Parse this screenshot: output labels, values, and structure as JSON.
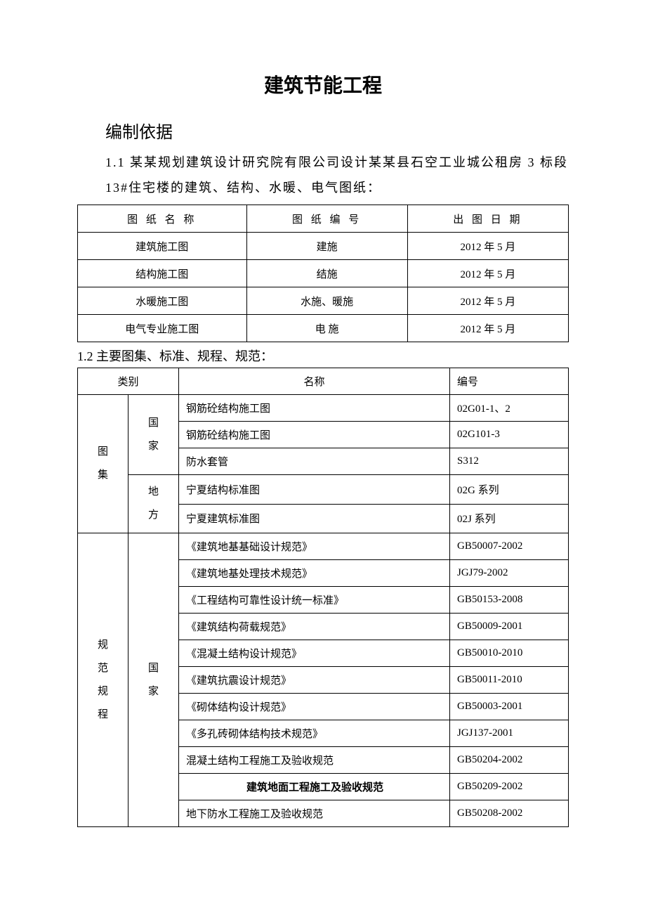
{
  "title": "建筑节能工程",
  "heading": "编制依据",
  "intro": "1.1 某某规划建筑设计研究院有限公司设计某某县石空工业城公租房 3 标段 13#住宅楼的建筑、结构、水暖、电气图纸：",
  "table1": {
    "headers": [
      "图 纸 名 称",
      "图 纸 编 号",
      "出 图 日 期"
    ],
    "rows": [
      [
        "建筑施工图",
        "建施",
        "2012 年 5 月"
      ],
      [
        "结构施工图",
        "结施",
        "2012 年 5 月"
      ],
      [
        "水暖施工图",
        "水施、暖施",
        "2012 年 5 月"
      ],
      [
        "电气专业施工图",
        "电 施",
        "2012 年 5 月"
      ]
    ]
  },
  "sub2": "1.2 主要图集、标准、规程、规范：",
  "table2": {
    "headers": [
      "类别",
      "名称",
      "编号"
    ],
    "groups": [
      {
        "cat": "图集",
        "subs": [
          {
            "sub": "国家",
            "rows": [
              [
                "钢筋砼结构施工图",
                "02G01-1、2"
              ],
              [
                "钢筋砼结构施工图",
                "02G101-3"
              ],
              [
                "防水套管",
                "S312"
              ]
            ]
          },
          {
            "sub": "地方",
            "rows": [
              [
                "宁夏结构标准图",
                "02G 系列"
              ],
              [
                "宁夏建筑标准图",
                "02J 系列"
              ]
            ]
          }
        ]
      },
      {
        "cat": "规范规程",
        "subs": [
          {
            "sub": "国家",
            "rows": [
              [
                "《建筑地基基础设计规范》",
                "GB50007-2002"
              ],
              [
                "《建筑地基处理技术规范》",
                "JGJ79-2002"
              ],
              [
                "《工程结构可靠性设计统一标准》",
                "GB50153-2008"
              ],
              [
                "《建筑结构荷载规范》",
                "GB50009-2001"
              ],
              [
                "《混凝土结构设计规范》",
                "GB50010-2010"
              ],
              [
                "《建筑抗震设计规范》",
                "GB50011-2010"
              ],
              [
                "《砌体结构设计规范》",
                "GB50003-2001"
              ],
              [
                "《多孔砖砌体结构技术规范》",
                "JGJ137-2001"
              ],
              [
                "混凝土结构工程施工及验收规范",
                "GB50204-2002"
              ],
              [
                "建筑地面工程施工及验收规范",
                "GB50209-2002"
              ],
              [
                "地下防水工程施工及验收规范",
                "GB50208-2002"
              ]
            ]
          }
        ]
      }
    ]
  },
  "bold_row_index": 9
}
